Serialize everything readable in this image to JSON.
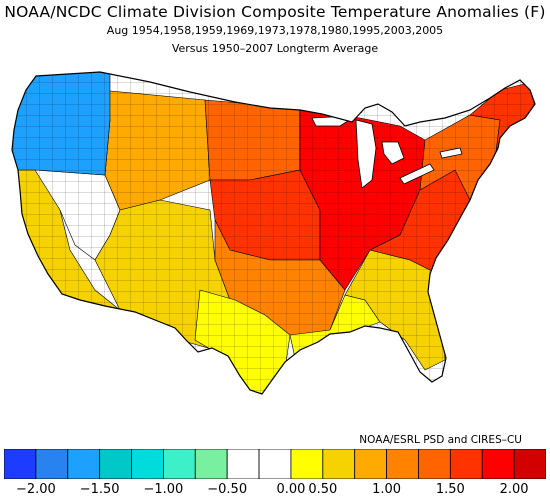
{
  "title": {
    "main": "NOAA/NCDC Climate Division Composite Temperature Anomalies (F)",
    "line2": "Aug   1954,1958,1959,1969,1973,1978,1980,1995,2003,2005",
    "line3": "Versus 1950–2007 Longterm Average"
  },
  "credit": "NOAA/ESRL PSD and CIRES–CU",
  "colorbar": {
    "colors": [
      "#1e3cff",
      "#2882f0",
      "#1ea0ff",
      "#00c8c8",
      "#00dcdc",
      "#3cf0c8",
      "#78f0a0",
      "#ffffff",
      "#ffffff",
      "#ffff00",
      "#f5d200",
      "#ffaa00",
      "#ff8200",
      "#ff6400",
      "#ff3200",
      "#ff0000",
      "#d20000"
    ],
    "ticks": [
      {
        "label": "−2.00",
        "index": 1
      },
      {
        "label": "−1.50",
        "index": 3
      },
      {
        "label": "−1.00",
        "index": 5
      },
      {
        "label": "−0.50",
        "index": 7
      },
      {
        "label": "0.00",
        "index": 9
      },
      {
        "label": "0.50",
        "index": 10
      },
      {
        "label": "1.00",
        "index": 12
      },
      {
        "label": "1.50",
        "index": 14
      },
      {
        "label": "2.00",
        "index": 16
      }
    ]
  },
  "map": {
    "regions": [
      {
        "name": "pacific-northwest",
        "color": "#1ea0ff"
      },
      {
        "name": "west-coast-south",
        "color": "#f5d200"
      },
      {
        "name": "great-basin",
        "color": "#ffffff"
      },
      {
        "name": "northern-rockies",
        "color": "#ffaa00"
      },
      {
        "name": "southwest",
        "color": "#f5d200"
      },
      {
        "name": "northern-plains",
        "color": "#ff6400"
      },
      {
        "name": "central-plains",
        "color": "#ff3200"
      },
      {
        "name": "midwest",
        "color": "#ff0000"
      },
      {
        "name": "south-central",
        "color": "#ff8200"
      },
      {
        "name": "texas",
        "color": "#ffff00"
      },
      {
        "name": "gulf-coast",
        "color": "#ffff00"
      },
      {
        "name": "southeast",
        "color": "#f5d200"
      },
      {
        "name": "ohio-valley",
        "color": "#ff3200"
      },
      {
        "name": "northeast",
        "color": "#ff6400"
      },
      {
        "name": "new-england",
        "color": "#ff3200"
      }
    ]
  }
}
